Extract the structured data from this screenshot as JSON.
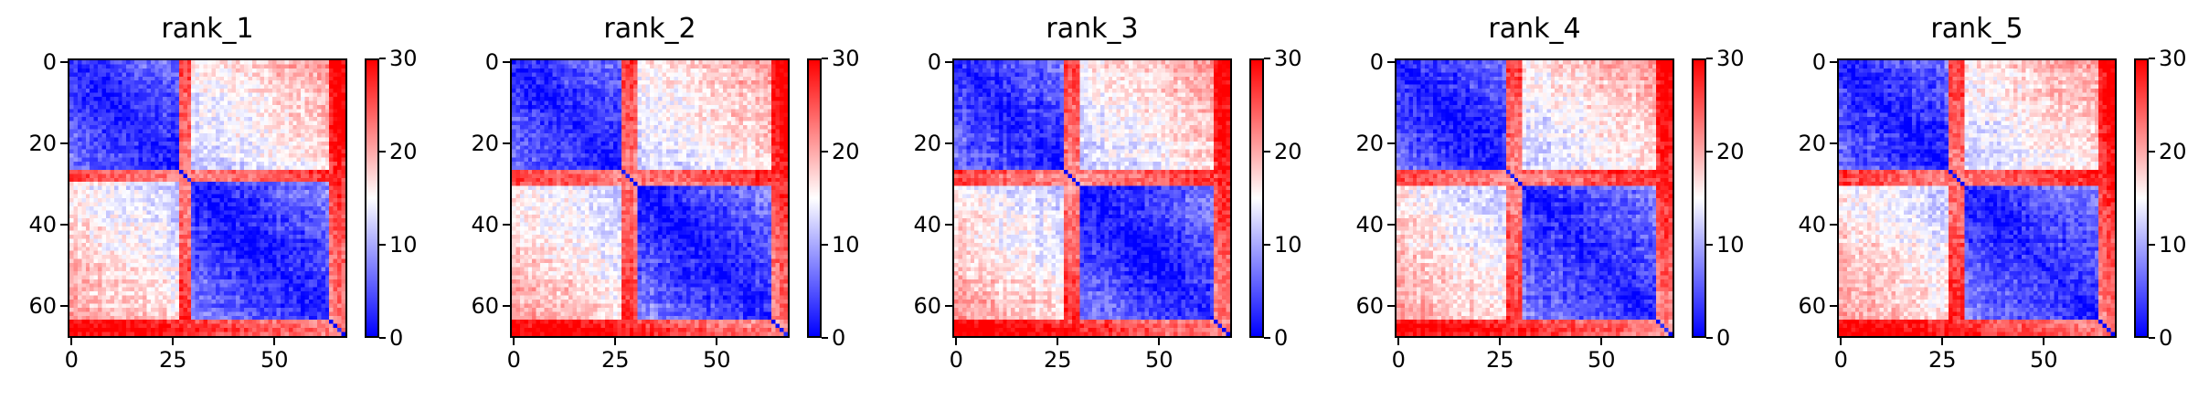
{
  "chart_data": [
    {
      "type": "heatmap",
      "title": "rank_1",
      "x_ticks": [
        "0",
        "25",
        "50"
      ],
      "y_ticks": [
        "0",
        "20",
        "40",
        "60"
      ],
      "colorbar_ticks": [
        "0",
        "10",
        "20",
        "30"
      ],
      "colorbar_range": [
        0,
        30
      ],
      "colormap": [
        "#0000ff",
        "#ffffff",
        "#ff0000"
      ],
      "matrix_size": 68,
      "domain_break": 29,
      "red_band_rows": [
        [
          27,
          30
        ],
        [
          64,
          68
        ]
      ]
    },
    {
      "type": "heatmap",
      "title": "rank_2",
      "x_ticks": [
        "0",
        "25",
        "50"
      ],
      "y_ticks": [
        "0",
        "20",
        "40",
        "60"
      ],
      "colorbar_ticks": [
        "0",
        "10",
        "20",
        "30"
      ],
      "colorbar_range": [
        0,
        30
      ],
      "colormap": [
        "#0000ff",
        "#ffffff",
        "#ff0000"
      ],
      "matrix_size": 68,
      "domain_break": 30,
      "red_band_rows": [
        [
          27,
          31
        ],
        [
          64,
          68
        ]
      ]
    },
    {
      "type": "heatmap",
      "title": "rank_3",
      "x_ticks": [
        "0",
        "25",
        "50"
      ],
      "y_ticks": [
        "0",
        "20",
        "40",
        "60"
      ],
      "colorbar_ticks": [
        "0",
        "10",
        "20",
        "30"
      ],
      "colorbar_range": [
        0,
        30
      ],
      "colormap": [
        "#0000ff",
        "#ffffff",
        "#ff0000"
      ],
      "matrix_size": 68,
      "domain_break": 30,
      "red_band_rows": [
        [
          27,
          31
        ],
        [
          64,
          68
        ]
      ]
    },
    {
      "type": "heatmap",
      "title": "rank_4",
      "x_ticks": [
        "0",
        "25",
        "50"
      ],
      "y_ticks": [
        "0",
        "20",
        "40",
        "60"
      ],
      "colorbar_ticks": [
        "0",
        "10",
        "20",
        "30"
      ],
      "colorbar_range": [
        0,
        30
      ],
      "colormap": [
        "#0000ff",
        "#ffffff",
        "#ff0000"
      ],
      "matrix_size": 68,
      "domain_break": 30,
      "red_band_rows": [
        [
          27,
          31
        ],
        [
          64,
          68
        ]
      ]
    },
    {
      "type": "heatmap",
      "title": "rank_5",
      "x_ticks": [
        "0",
        "25",
        "50"
      ],
      "y_ticks": [
        "0",
        "20",
        "40",
        "60"
      ],
      "colorbar_ticks": [
        "0",
        "10",
        "20",
        "30"
      ],
      "colorbar_range": [
        0,
        30
      ],
      "colormap": [
        "#0000ff",
        "#ffffff",
        "#ff0000"
      ],
      "matrix_size": 68,
      "domain_break": 30,
      "red_band_rows": [
        [
          27,
          31
        ],
        [
          64,
          68
        ]
      ]
    }
  ]
}
